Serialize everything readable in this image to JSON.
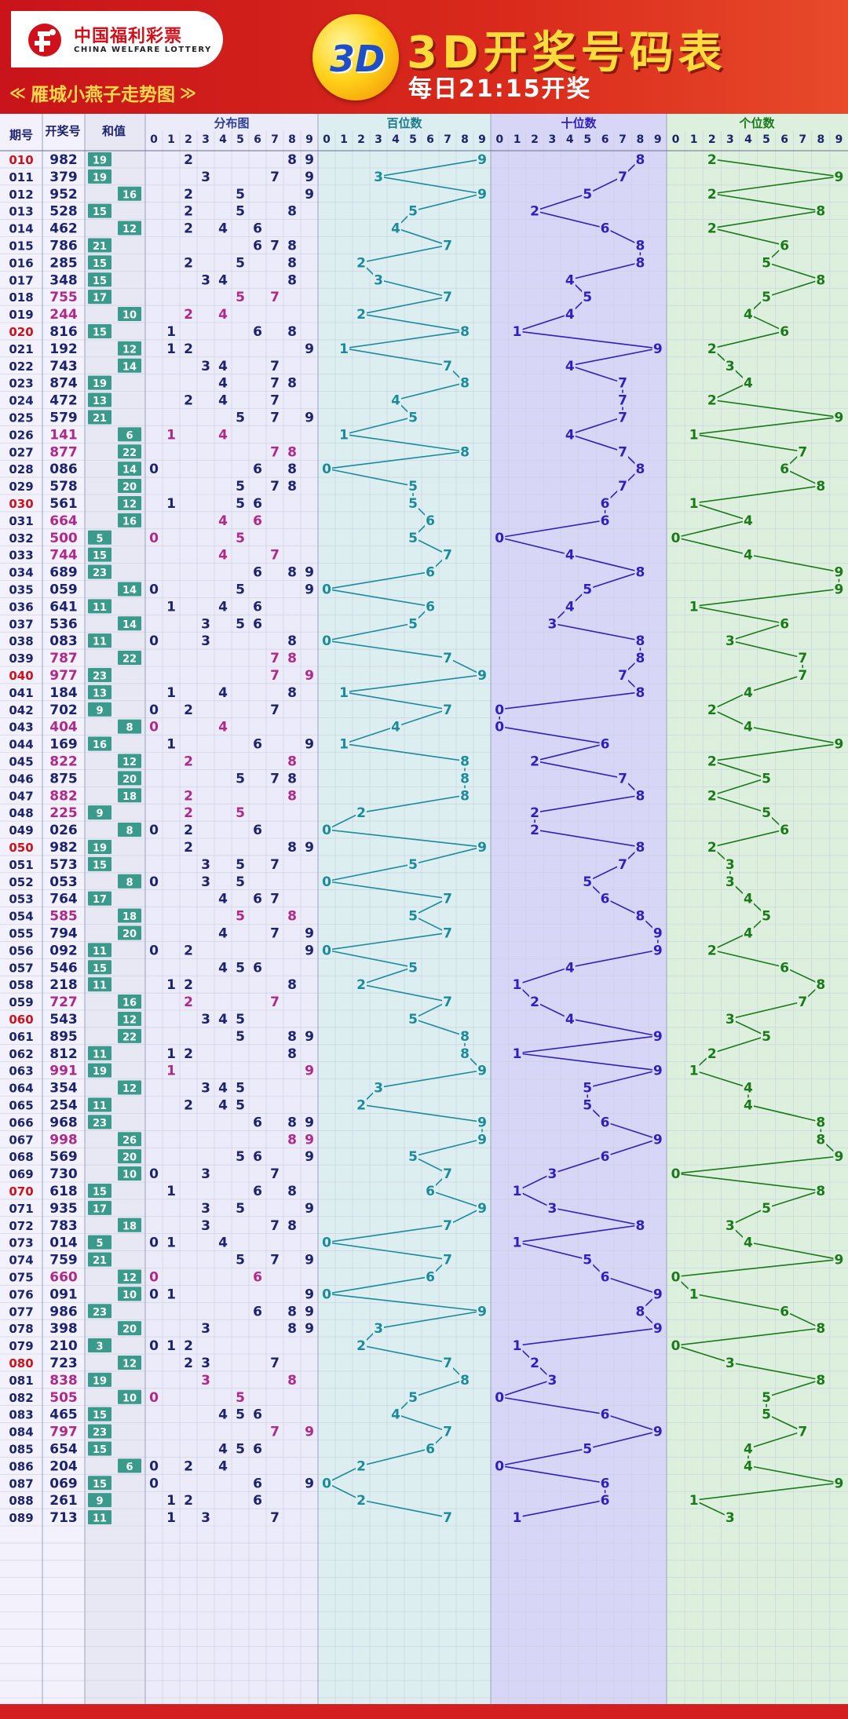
{
  "header": {
    "logo_cn": "中国福利彩票",
    "logo_en": "CHINA WELFARE LOTTERY",
    "subtitle": "雁城小燕子走势图",
    "ball_label": "3D",
    "title": "3D开奖号码表",
    "draw_time": "每日21:15开奖"
  },
  "columns": {
    "period": "期号",
    "number": "开奖号",
    "sum": "和值",
    "distribution": "分布图",
    "hundreds": "百位数",
    "tens": "十位数",
    "units": "个位数",
    "digits": [
      "0",
      "1",
      "2",
      "3",
      "4",
      "5",
      "6",
      "7",
      "8",
      "9"
    ]
  },
  "colors": {
    "period_red": "#d0121b",
    "period_normal": "#1c2370",
    "number_normal": "#1c2370",
    "number_repeat": "#b0288c",
    "sum_badge": "#3a9a8c",
    "hundreds_line": "#1b8a9c",
    "tens_line": "#2e1fc0",
    "units_line": "#1a7a1a"
  },
  "chart_data": {
    "type": "table",
    "draws": [
      {
        "p": "010",
        "n": "982",
        "s": "19",
        "a": "L"
      },
      {
        "p": "011",
        "n": "379",
        "s": "19",
        "a": "L"
      },
      {
        "p": "012",
        "n": "952",
        "s": "16",
        "a": "R"
      },
      {
        "p": "013",
        "n": "528",
        "s": "15",
        "a": "L"
      },
      {
        "p": "014",
        "n": "462",
        "s": "12",
        "a": "R"
      },
      {
        "p": "015",
        "n": "786",
        "s": "21",
        "a": "L"
      },
      {
        "p": "016",
        "n": "285",
        "s": "15",
        "a": "L"
      },
      {
        "p": "017",
        "n": "348",
        "s": "15",
        "a": "L"
      },
      {
        "p": "018",
        "n": "755",
        "s": "17",
        "a": "L"
      },
      {
        "p": "019",
        "n": "244",
        "s": "10",
        "a": "R"
      },
      {
        "p": "020",
        "n": "816",
        "s": "15",
        "a": "L"
      },
      {
        "p": "021",
        "n": "192",
        "s": "12",
        "a": "R"
      },
      {
        "p": "022",
        "n": "743",
        "s": "14",
        "a": "R"
      },
      {
        "p": "023",
        "n": "874",
        "s": "19",
        "a": "L"
      },
      {
        "p": "024",
        "n": "472",
        "s": "13",
        "a": "L"
      },
      {
        "p": "025",
        "n": "579",
        "s": "21",
        "a": "L"
      },
      {
        "p": "026",
        "n": "141",
        "s": "6",
        "a": "R"
      },
      {
        "p": "027",
        "n": "877",
        "s": "22",
        "a": "R"
      },
      {
        "p": "028",
        "n": "086",
        "s": "14",
        "a": "R"
      },
      {
        "p": "029",
        "n": "578",
        "s": "20",
        "a": "R"
      },
      {
        "p": "030",
        "n": "561",
        "s": "12",
        "a": "R"
      },
      {
        "p": "031",
        "n": "664",
        "s": "16",
        "a": "R"
      },
      {
        "p": "032",
        "n": "500",
        "s": "5",
        "a": "L"
      },
      {
        "p": "033",
        "n": "744",
        "s": "15",
        "a": "L"
      },
      {
        "p": "034",
        "n": "689",
        "s": "23",
        "a": "L"
      },
      {
        "p": "035",
        "n": "059",
        "s": "14",
        "a": "R"
      },
      {
        "p": "036",
        "n": "641",
        "s": "11",
        "a": "L"
      },
      {
        "p": "037",
        "n": "536",
        "s": "14",
        "a": "R"
      },
      {
        "p": "038",
        "n": "083",
        "s": "11",
        "a": "L"
      },
      {
        "p": "039",
        "n": "787",
        "s": "22",
        "a": "R"
      },
      {
        "p": "040",
        "n": "977",
        "s": "23",
        "a": "L"
      },
      {
        "p": "041",
        "n": "184",
        "s": "13",
        "a": "L"
      },
      {
        "p": "042",
        "n": "702",
        "s": "9",
        "a": "L"
      },
      {
        "p": "043",
        "n": "404",
        "s": "8",
        "a": "R"
      },
      {
        "p": "044",
        "n": "169",
        "s": "16",
        "a": "L"
      },
      {
        "p": "045",
        "n": "822",
        "s": "12",
        "a": "R"
      },
      {
        "p": "046",
        "n": "875",
        "s": "20",
        "a": "R"
      },
      {
        "p": "047",
        "n": "882",
        "s": "18",
        "a": "R"
      },
      {
        "p": "048",
        "n": "225",
        "s": "9",
        "a": "L"
      },
      {
        "p": "049",
        "n": "026",
        "s": "8",
        "a": "R"
      },
      {
        "p": "050",
        "n": "982",
        "s": "19",
        "a": "L"
      },
      {
        "p": "051",
        "n": "573",
        "s": "15",
        "a": "L"
      },
      {
        "p": "052",
        "n": "053",
        "s": "8",
        "a": "R"
      },
      {
        "p": "053",
        "n": "764",
        "s": "17",
        "a": "L"
      },
      {
        "p": "054",
        "n": "585",
        "s": "18",
        "a": "R"
      },
      {
        "p": "055",
        "n": "794",
        "s": "20",
        "a": "R"
      },
      {
        "p": "056",
        "n": "092",
        "s": "11",
        "a": "L"
      },
      {
        "p": "057",
        "n": "546",
        "s": "15",
        "a": "L"
      },
      {
        "p": "058",
        "n": "218",
        "s": "11",
        "a": "L"
      },
      {
        "p": "059",
        "n": "727",
        "s": "16",
        "a": "R"
      },
      {
        "p": "060",
        "n": "543",
        "s": "12",
        "a": "R"
      },
      {
        "p": "061",
        "n": "895",
        "s": "22",
        "a": "R"
      },
      {
        "p": "062",
        "n": "812",
        "s": "11",
        "a": "L"
      },
      {
        "p": "063",
        "n": "991",
        "s": "19",
        "a": "L"
      },
      {
        "p": "064",
        "n": "354",
        "s": "12",
        "a": "R"
      },
      {
        "p": "065",
        "n": "254",
        "s": "11",
        "a": "L"
      },
      {
        "p": "066",
        "n": "968",
        "s": "23",
        "a": "L"
      },
      {
        "p": "067",
        "n": "998",
        "s": "26",
        "a": "R"
      },
      {
        "p": "068",
        "n": "569",
        "s": "20",
        "a": "R"
      },
      {
        "p": "069",
        "n": "730",
        "s": "10",
        "a": "R"
      },
      {
        "p": "070",
        "n": "618",
        "s": "15",
        "a": "L"
      },
      {
        "p": "071",
        "n": "935",
        "s": "17",
        "a": "L"
      },
      {
        "p": "072",
        "n": "783",
        "s": "18",
        "a": "R"
      },
      {
        "p": "073",
        "n": "014",
        "s": "5",
        "a": "L"
      },
      {
        "p": "074",
        "n": "759",
        "s": "21",
        "a": "L"
      },
      {
        "p": "075",
        "n": "660",
        "s": "12",
        "a": "R"
      },
      {
        "p": "076",
        "n": "091",
        "s": "10",
        "a": "R"
      },
      {
        "p": "077",
        "n": "986",
        "s": "23",
        "a": "L"
      },
      {
        "p": "078",
        "n": "398",
        "s": "20",
        "a": "R"
      },
      {
        "p": "079",
        "n": "210",
        "s": "3",
        "a": "L"
      },
      {
        "p": "080",
        "n": "723",
        "s": "12",
        "a": "R"
      },
      {
        "p": "081",
        "n": "838",
        "s": "19",
        "a": "L"
      },
      {
        "p": "082",
        "n": "505",
        "s": "10",
        "a": "R"
      },
      {
        "p": "083",
        "n": "465",
        "s": "15",
        "a": "L"
      },
      {
        "p": "084",
        "n": "797",
        "s": "23",
        "a": "L"
      },
      {
        "p": "085",
        "n": "654",
        "s": "15",
        "a": "L"
      },
      {
        "p": "086",
        "n": "204",
        "s": "6",
        "a": "R"
      },
      {
        "p": "087",
        "n": "069",
        "s": "15",
        "a": "L"
      },
      {
        "p": "088",
        "n": "261",
        "s": "9",
        "a": "L"
      },
      {
        "p": "089",
        "n": "713",
        "s": "11",
        "a": "L"
      }
    ]
  }
}
